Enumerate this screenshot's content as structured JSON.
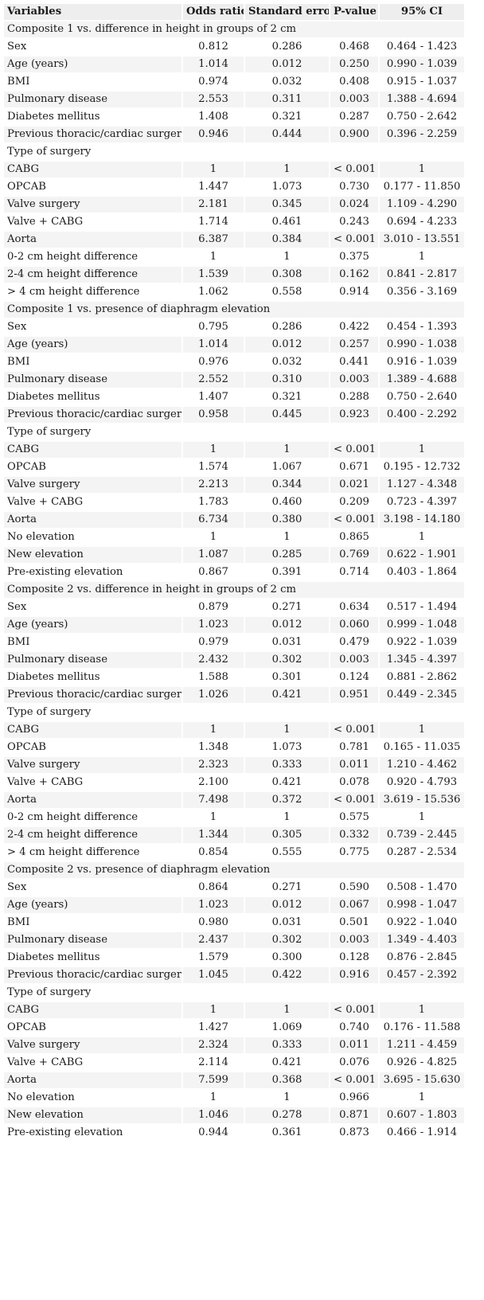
{
  "table": {
    "headers": [
      "Variables",
      "Odds ratio",
      "Standard error",
      "P-value",
      "95% CI"
    ],
    "rows": [
      {
        "type": "section",
        "label": "Composite 1 vs. difference in height in groups of 2 cm"
      },
      {
        "label": "Sex",
        "or": "0.812",
        "se": "0.286",
        "p": "0.468",
        "ci": "0.464 - 1.423"
      },
      {
        "label": "Age (years)",
        "or": "1.014",
        "se": "0.012",
        "p": "0.250",
        "ci": "0.990 - 1.039"
      },
      {
        "label": "BMI",
        "or": "0.974",
        "se": "0.032",
        "p": "0.408",
        "ci": "0.915 - 1.037"
      },
      {
        "label": "Pulmonary disease",
        "or": "2.553",
        "se": "0.311",
        "p": "0.003",
        "ci": "1.388 - 4.694"
      },
      {
        "label": "Diabetes mellitus",
        "or": "1.408",
        "se": "0.321",
        "p": "0.287",
        "ci": "0.750 - 2.642"
      },
      {
        "label": "Previous thoracic/cardiac surgery",
        "or": "0.946",
        "se": "0.444",
        "p": "0.900",
        "ci": "0.396 - 2.259"
      },
      {
        "label": "Type of surgery",
        "or": "",
        "se": "",
        "p": "",
        "ci": ""
      },
      {
        "label": "CABG",
        "or": "1",
        "se": "1",
        "p": "< 0.001",
        "ci": "1"
      },
      {
        "label": "OPCAB",
        "or": "1.447",
        "se": "1.073",
        "p": "0.730",
        "ci": "0.177 - 11.850"
      },
      {
        "label": "Valve surgery",
        "or": "2.181",
        "se": "0.345",
        "p": "0.024",
        "ci": "1.109 - 4.290"
      },
      {
        "label": "Valve + CABG",
        "or": "1.714",
        "se": "0.461",
        "p": "0.243",
        "ci": "0.694 - 4.233"
      },
      {
        "label": "Aorta",
        "or": "6.387",
        "se": "0.384",
        "p": "< 0.001",
        "ci": "3.010 - 13.551"
      },
      {
        "label": "0-2 cm height difference",
        "or": "1",
        "se": "1",
        "p": "0.375",
        "ci": "1"
      },
      {
        "label": "2-4 cm height difference",
        "or": "1.539",
        "se": "0.308",
        "p": "0.162",
        "ci": "0.841 - 2.817"
      },
      {
        "label": "> 4 cm height difference",
        "or": "1.062",
        "se": "0.558",
        "p": "0.914",
        "ci": "0.356 - 3.169"
      },
      {
        "type": "section",
        "label": "Composite 1 vs. presence of diaphragm elevation"
      },
      {
        "label": "Sex",
        "or": "0.795",
        "se": "0.286",
        "p": "0.422",
        "ci": "0.454 - 1.393"
      },
      {
        "label": "Age (years)",
        "or": "1.014",
        "se": "0.012",
        "p": "0.257",
        "ci": "0.990 - 1.038"
      },
      {
        "label": "BMI",
        "or": "0.976",
        "se": "0.032",
        "p": "0.441",
        "ci": "0.916 - 1.039"
      },
      {
        "label": "Pulmonary disease",
        "or": "2.552",
        "se": "0.310",
        "p": "0.003",
        "ci": "1.389 - 4.688"
      },
      {
        "label": "Diabetes mellitus",
        "or": "1.407",
        "se": "0.321",
        "p": "0.288",
        "ci": "0.750 - 2.640"
      },
      {
        "label": "Previous thoracic/cardiac surgery",
        "or": "0.958",
        "se": "0.445",
        "p": "0.923",
        "ci": "0.400 - 2.292"
      },
      {
        "label": "Type of surgery",
        "or": "",
        "se": "",
        "p": "",
        "ci": ""
      },
      {
        "label": "CABG",
        "or": "1",
        "se": "1",
        "p": "< 0.001",
        "ci": "1"
      },
      {
        "label": "OPCAB",
        "or": "1.574",
        "se": "1.067",
        "p": "0.671",
        "ci": "0.195 - 12.732"
      },
      {
        "label": "Valve surgery",
        "or": "2.213",
        "se": "0.344",
        "p": "0.021",
        "ci": "1.127 - 4.348"
      },
      {
        "label": "Valve + CABG",
        "or": "1.783",
        "se": "0.460",
        "p": "0.209",
        "ci": "0.723 - 4.397"
      },
      {
        "label": "Aorta",
        "or": "6.734",
        "se": "0.380",
        "p": "< 0.001",
        "ci": "3.198 - 14.180"
      },
      {
        "label": "No elevation",
        "or": "1",
        "se": "1",
        "p": "0.865",
        "ci": "1"
      },
      {
        "label": "New elevation",
        "or": "1.087",
        "se": "0.285",
        "p": "0.769",
        "ci": "0.622 - 1.901"
      },
      {
        "label": "Pre-existing elevation",
        "or": "0.867",
        "se": "0.391",
        "p": "0.714",
        "ci": "0.403 - 1.864"
      },
      {
        "type": "section",
        "label": "Composite 2 vs. difference in height in groups of 2 cm"
      },
      {
        "label": "Sex",
        "or": "0.879",
        "se": "0.271",
        "p": "0.634",
        "ci": "0.517 - 1.494"
      },
      {
        "label": "Age (years)",
        "or": "1.023",
        "se": "0.012",
        "p": "0.060",
        "ci": "0.999 - 1.048"
      },
      {
        "label": "BMI",
        "or": "0.979",
        "se": "0.031",
        "p": "0.479",
        "ci": "0.922 - 1.039"
      },
      {
        "label": "Pulmonary disease",
        "or": "2.432",
        "se": "0.302",
        "p": "0.003",
        "ci": "1.345 - 4.397"
      },
      {
        "label": "Diabetes mellitus",
        "or": "1.588",
        "se": "0.301",
        "p": "0.124",
        "ci": "0.881 - 2.862"
      },
      {
        "label": "Previous thoracic/cardiac surgery",
        "or": "1.026",
        "se": "0.421",
        "p": "0.951",
        "ci": "0.449 - 2.345"
      },
      {
        "label": "Type of surgery",
        "or": "",
        "se": "",
        "p": "",
        "ci": ""
      },
      {
        "label": "CABG",
        "or": "1",
        "se": "1",
        "p": "< 0.001",
        "ci": "1"
      },
      {
        "label": "OPCAB",
        "or": "1.348",
        "se": "1.073",
        "p": "0.781",
        "ci": "0.165 - 11.035"
      },
      {
        "label": "Valve surgery",
        "or": "2.323",
        "se": "0.333",
        "p": "0.011",
        "ci": "1.210 - 4.462"
      },
      {
        "label": "Valve + CABG",
        "or": "2.100",
        "se": "0.421",
        "p": "0.078",
        "ci": "0.920 - 4.793"
      },
      {
        "label": "Aorta",
        "or": "7.498",
        "se": "0.372",
        "p": "< 0.001",
        "ci": "3.619 - 15.536"
      },
      {
        "label": "0-2 cm height difference",
        "or": "1",
        "se": "1",
        "p": "0.575",
        "ci": "1"
      },
      {
        "label": "2-4 cm height difference",
        "or": "1.344",
        "se": "0.305",
        "p": "0.332",
        "ci": "0.739 - 2.445"
      },
      {
        "label": "> 4 cm height difference",
        "or": "0.854",
        "se": "0.555",
        "p": "0.775",
        "ci": "0.287 - 2.534"
      },
      {
        "type": "section",
        "label": "Composite 2 vs. presence of diaphragm elevation"
      },
      {
        "label": "Sex",
        "or": "0.864",
        "se": "0.271",
        "p": "0.590",
        "ci": "0.508 - 1.470"
      },
      {
        "label": "Age (years)",
        "or": "1.023",
        "se": "0.012",
        "p": "0.067",
        "ci": "0.998 - 1.047"
      },
      {
        "label": "BMI",
        "or": "0.980",
        "se": "0.031",
        "p": "0.501",
        "ci": "0.922 - 1.040"
      },
      {
        "label": "Pulmonary disease",
        "or": "2.437",
        "se": "0.302",
        "p": "0.003",
        "ci": "1.349 - 4.403"
      },
      {
        "label": "Diabetes mellitus",
        "or": "1.579",
        "se": "0.300",
        "p": "0.128",
        "ci": "0.876 - 2.845"
      },
      {
        "label": "Previous thoracic/cardiac surgery",
        "or": "1.045",
        "se": "0.422",
        "p": "0.916",
        "ci": "0.457 - 2.392"
      },
      {
        "label": "Type of surgery",
        "or": "",
        "se": "",
        "p": "",
        "ci": ""
      },
      {
        "label": "CABG",
        "or": "1",
        "se": "1",
        "p": "< 0.001",
        "ci": "1"
      },
      {
        "label": "OPCAB",
        "or": "1.427",
        "se": "1.069",
        "p": "0.740",
        "ci": "0.176 - 11.588"
      },
      {
        "label": "Valve surgery",
        "or": "2.324",
        "se": "0.333",
        "p": "0.011",
        "ci": "1.211 - 4.459"
      },
      {
        "label": "Valve + CABG",
        "or": "2.114",
        "se": "0.421",
        "p": "0.076",
        "ci": "0.926 - 4.825"
      },
      {
        "label": "Aorta",
        "or": "7.599",
        "se": "0.368",
        "p": "< 0.001",
        "ci": "3.695 - 15.630"
      },
      {
        "label": "No elevation",
        "or": "1",
        "se": "1",
        "p": "0.966",
        "ci": "1"
      },
      {
        "label": "New elevation",
        "or": "1.046",
        "se": "0.278",
        "p": "0.871",
        "ci": "0.607 - 1.803"
      },
      {
        "label": "Pre-existing elevation",
        "or": "0.944",
        "se": "0.361",
        "p": "0.873",
        "ci": "0.466 - 1.914"
      }
    ]
  }
}
